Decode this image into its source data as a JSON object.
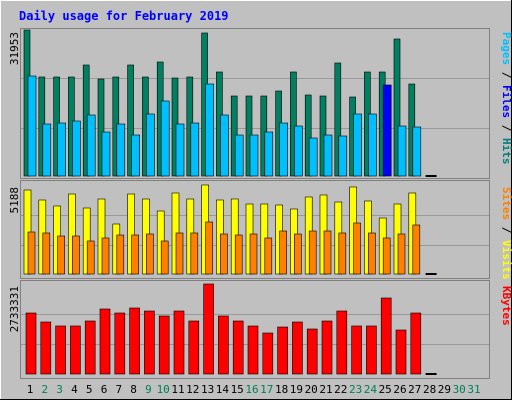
{
  "chart_data": {
    "type": "bar",
    "title": "Daily usage for February 2019",
    "categories": [
      "1",
      "2",
      "3",
      "4",
      "5",
      "6",
      "7",
      "8",
      "9",
      "10",
      "11",
      "12",
      "13",
      "14",
      "15",
      "16",
      "17",
      "18",
      "19",
      "20",
      "21",
      "22",
      "23",
      "24",
      "25",
      "26",
      "27",
      "28",
      "29",
      "30",
      "31"
    ],
    "weekend_days": [
      "2",
      "3",
      "9",
      "10",
      "16",
      "17",
      "23",
      "24",
      "30",
      "31"
    ],
    "highlight_day": "25",
    "panels": [
      {
        "id": "hits-files-pages",
        "scale_label": "31953",
        "ymax": 31953,
        "legend": [
          {
            "text": "Pages",
            "color": "#00bfff"
          },
          {
            "text": " / ",
            "color": "#000000"
          },
          {
            "text": "Files",
            "color": "#0000ff"
          },
          {
            "text": " / ",
            "color": "#000000"
          },
          {
            "text": "Hits",
            "color": "#008080"
          }
        ],
        "series": [
          {
            "name": "Hits",
            "color": "#008060",
            "values": [
              31950,
              21700,
              21700,
              21700,
              24300,
              21200,
              21700,
              24300,
              21700,
              25000,
              21500,
              21700,
              31200,
              22800,
              17500,
              17500,
              17500,
              18700,
              22800,
              17800,
              17500,
              24800,
              17300,
              22800,
              22800,
              29900,
              20200,
              0,
              0,
              0,
              0
            ]
          },
          {
            "name": "Files",
            "color": "#0000ff",
            "values": [
              21900,
              11400,
              11600,
              12000,
              13400,
              9700,
              11400,
              9000,
              13600,
              16400,
              11400,
              11700,
              20200,
              13400,
              9000,
              9000,
              9600,
              11700,
              11000,
              8300,
              9000,
              8700,
              13600,
              13500,
              20000,
              11000,
              10700,
              0,
              0,
              0,
              0
            ]
          },
          {
            "name": "Pages",
            "color": "#00bfff",
            "values": [
              21900,
              11400,
              11600,
              12000,
              13400,
              9700,
              11400,
              9000,
              13600,
              16400,
              11400,
              11700,
              20200,
              13400,
              9000,
              9000,
              9600,
              11700,
              11000,
              8300,
              9000,
              8700,
              13600,
              13500,
              20000,
              11000,
              10700,
              0,
              0,
              0,
              0
            ]
          }
        ]
      },
      {
        "id": "visits-sites",
        "scale_label": "5188",
        "ymax": 5188,
        "legend": [
          {
            "text": "Sites",
            "color": "#ff8000"
          },
          {
            "text": " / ",
            "color": "#000000"
          },
          {
            "text": "Visits",
            "color": "#ffff00"
          }
        ],
        "series": [
          {
            "name": "Visits",
            "color": "#ffff00",
            "values": [
              4880,
              4320,
              3940,
              4640,
              3860,
              4400,
              2900,
              4640,
              4400,
              3660,
              4720,
              4350,
              5188,
              4320,
              4350,
              4100,
              4080,
              4050,
              3800,
              4500,
              4590,
              4200,
              5100,
              4270,
              3260,
              4100,
              4720,
              0,
              0,
              0,
              0
            ]
          },
          {
            "name": "Sites",
            "color": "#ff8000",
            "values": [
              2440,
              2380,
              2220,
              2220,
              1930,
              2080,
              2300,
              2280,
              2320,
              1930,
              2380,
              2380,
              3060,
              2330,
              2270,
              2330,
              2120,
              2480,
              2350,
              2480,
              2480,
              2370,
              3000,
              2370,
              2090,
              2330,
              2850,
              0,
              0,
              0,
              0
            ]
          }
        ]
      },
      {
        "id": "kbytes",
        "scale_label": "2733331",
        "ymax": 2733331,
        "legend": [
          {
            "text": "KBytes",
            "color": "#ff0000"
          }
        ],
        "series": [
          {
            "name": "KBytes",
            "color": "#ff0000",
            "values": [
              1864600,
              1584900,
              1449700,
              1459000,
              1616500,
              1972500,
              1846700,
              1989300,
              1915600,
              1748300,
              1900700,
              1594600,
              2733331,
              1751900,
              1612600,
              1468000,
              1247700,
              1414900,
              1590800,
              1354500,
              1607200,
              1922300,
              1449700,
              1464100,
              2317400,
              1347100,
              1861900,
              0,
              0,
              0,
              0
            ]
          }
        ]
      }
    ]
  }
}
